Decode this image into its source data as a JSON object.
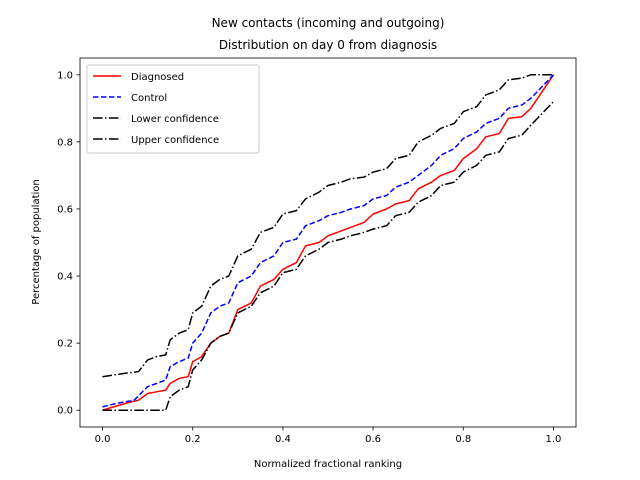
{
  "chart_data": {
    "type": "line",
    "title": [
      "New contacts (incoming and outgoing)",
      "Distribution on day 0 from diagnosis"
    ],
    "xlabel": "Normalized fractional ranking",
    "ylabel": "Percentage of population",
    "xlim": [
      -0.05,
      1.05
    ],
    "ylim": [
      -0.05,
      1.05
    ],
    "xticks": [
      "0.0",
      "0.2",
      "0.4",
      "0.6",
      "0.8",
      "1.0"
    ],
    "yticks": [
      "0.0",
      "0.2",
      "0.4",
      "0.6",
      "0.8",
      "1.0"
    ],
    "legend_position": "top-left",
    "series": [
      {
        "name": "Diagnosed",
        "color": "#ff0000",
        "style": "solid",
        "x": [
          0.0,
          0.05,
          0.08,
          0.1,
          0.12,
          0.14,
          0.15,
          0.17,
          0.19,
          0.2,
          0.22,
          0.24,
          0.26,
          0.28,
          0.3,
          0.33,
          0.35,
          0.38,
          0.4,
          0.43,
          0.45,
          0.48,
          0.5,
          0.53,
          0.55,
          0.58,
          0.6,
          0.63,
          0.65,
          0.68,
          0.7,
          0.73,
          0.75,
          0.78,
          0.8,
          0.83,
          0.85,
          0.88,
          0.9,
          0.93,
          0.95,
          1.0
        ],
        "y": [
          0.0,
          0.02,
          0.03,
          0.05,
          0.055,
          0.06,
          0.08,
          0.095,
          0.1,
          0.145,
          0.16,
          0.2,
          0.22,
          0.23,
          0.3,
          0.32,
          0.37,
          0.39,
          0.42,
          0.44,
          0.49,
          0.5,
          0.52,
          0.535,
          0.545,
          0.56,
          0.585,
          0.6,
          0.615,
          0.625,
          0.66,
          0.68,
          0.7,
          0.715,
          0.75,
          0.78,
          0.815,
          0.825,
          0.87,
          0.875,
          0.9,
          1.0
        ]
      },
      {
        "name": "Control",
        "color": "#0000ff",
        "style": "dashed",
        "x": [
          0.0,
          0.03,
          0.07,
          0.1,
          0.12,
          0.14,
          0.15,
          0.17,
          0.19,
          0.2,
          0.22,
          0.24,
          0.26,
          0.28,
          0.3,
          0.33,
          0.35,
          0.38,
          0.4,
          0.43,
          0.45,
          0.48,
          0.5,
          0.53,
          0.55,
          0.58,
          0.6,
          0.63,
          0.65,
          0.68,
          0.7,
          0.73,
          0.75,
          0.78,
          0.8,
          0.83,
          0.85,
          0.88,
          0.9,
          0.93,
          0.95,
          1.0
        ],
        "y": [
          0.01,
          0.02,
          0.03,
          0.07,
          0.08,
          0.09,
          0.13,
          0.145,
          0.155,
          0.2,
          0.23,
          0.29,
          0.31,
          0.32,
          0.38,
          0.4,
          0.44,
          0.46,
          0.5,
          0.51,
          0.55,
          0.565,
          0.58,
          0.59,
          0.6,
          0.61,
          0.63,
          0.64,
          0.665,
          0.68,
          0.7,
          0.73,
          0.76,
          0.78,
          0.81,
          0.83,
          0.855,
          0.87,
          0.9,
          0.91,
          0.93,
          1.0
        ]
      },
      {
        "name": "Lower confidence",
        "color": "#000000",
        "style": "dashdot",
        "x": [
          0.0,
          0.05,
          0.1,
          0.14,
          0.15,
          0.17,
          0.19,
          0.2,
          0.22,
          0.24,
          0.26,
          0.28,
          0.3,
          0.33,
          0.35,
          0.38,
          0.4,
          0.43,
          0.45,
          0.48,
          0.5,
          0.53,
          0.55,
          0.58,
          0.6,
          0.63,
          0.65,
          0.68,
          0.7,
          0.73,
          0.75,
          0.78,
          0.8,
          0.83,
          0.85,
          0.88,
          0.9,
          0.93,
          0.95,
          1.0
        ],
        "y": [
          0.0,
          0.0,
          0.0,
          0.0,
          0.04,
          0.06,
          0.07,
          0.12,
          0.15,
          0.2,
          0.22,
          0.23,
          0.29,
          0.31,
          0.35,
          0.37,
          0.41,
          0.42,
          0.46,
          0.48,
          0.5,
          0.51,
          0.52,
          0.53,
          0.54,
          0.55,
          0.58,
          0.59,
          0.62,
          0.64,
          0.67,
          0.68,
          0.71,
          0.73,
          0.76,
          0.77,
          0.81,
          0.82,
          0.85,
          0.92
        ]
      },
      {
        "name": "Upper confidence",
        "color": "#000000",
        "style": "dashdot",
        "x": [
          0.0,
          0.05,
          0.08,
          0.1,
          0.12,
          0.14,
          0.15,
          0.17,
          0.19,
          0.2,
          0.22,
          0.24,
          0.26,
          0.28,
          0.3,
          0.33,
          0.35,
          0.38,
          0.4,
          0.43,
          0.45,
          0.48,
          0.5,
          0.53,
          0.55,
          0.58,
          0.6,
          0.63,
          0.65,
          0.68,
          0.7,
          0.73,
          0.75,
          0.78,
          0.8,
          0.83,
          0.85,
          0.88,
          0.9,
          0.93,
          0.95,
          1.0
        ],
        "y": [
          0.1,
          0.11,
          0.115,
          0.15,
          0.16,
          0.165,
          0.21,
          0.23,
          0.24,
          0.29,
          0.31,
          0.37,
          0.39,
          0.4,
          0.46,
          0.48,
          0.53,
          0.545,
          0.585,
          0.595,
          0.63,
          0.65,
          0.67,
          0.68,
          0.69,
          0.695,
          0.71,
          0.72,
          0.75,
          0.76,
          0.8,
          0.82,
          0.84,
          0.855,
          0.89,
          0.905,
          0.94,
          0.955,
          0.985,
          0.99,
          1.0,
          1.0
        ]
      }
    ]
  }
}
